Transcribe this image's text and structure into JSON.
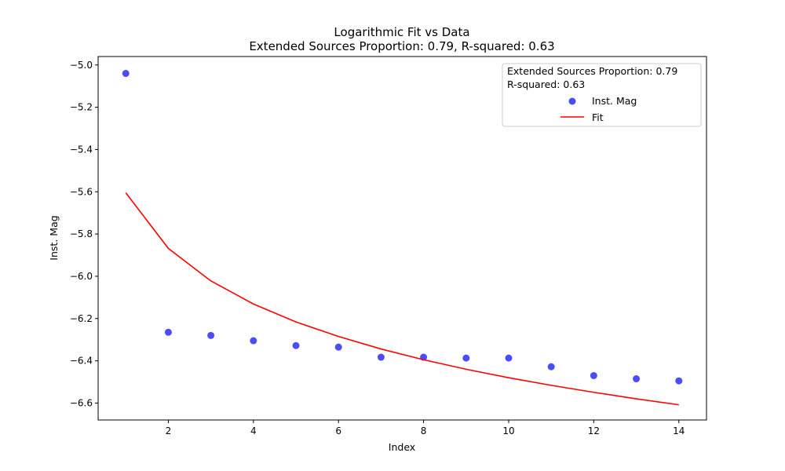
{
  "chart_data": {
    "type": "scatter",
    "title": "Logarithmic Fit vs Data",
    "subtitle": "Extended Sources Proportion: 0.79, R-squared: 0.63",
    "xlabel": "Index",
    "ylabel": "Inst. Mag",
    "xlim": [
      0.35,
      14.65
    ],
    "ylim": [
      -6.68,
      -4.96
    ],
    "xticks": [
      2,
      4,
      6,
      8,
      10,
      12,
      14
    ],
    "xtick_labels": [
      "2",
      "4",
      "6",
      "8",
      "10",
      "12",
      "14"
    ],
    "yticks": [
      -5.0,
      -5.2,
      -5.4,
      -5.6,
      -5.8,
      -6.0,
      -6.2,
      -6.4,
      -6.6
    ],
    "ytick_labels": [
      "−5.0",
      "−5.2",
      "−5.4",
      "−5.6",
      "−5.8",
      "−6.0",
      "−6.2",
      "−6.4",
      "−6.6"
    ],
    "grid": false,
    "legend_position": "top-right",
    "legend_header": [
      "Extended Sources Proportion: 0.79",
      "R-squared: 0.63"
    ],
    "series": [
      {
        "name": "Inst. Mag",
        "kind": "scatter",
        "color": "#0000ff",
        "x": [
          1,
          2,
          3,
          4,
          5,
          6,
          7,
          8,
          9,
          10,
          11,
          12,
          13,
          14
        ],
        "y": [
          -5.04,
          -6.265,
          -6.28,
          -6.305,
          -6.328,
          -6.335,
          -6.383,
          -6.383,
          -6.387,
          -6.387,
          -6.428,
          -6.47,
          -6.485,
          -6.495
        ]
      },
      {
        "name": "Fit",
        "kind": "line",
        "color": "#ff0000",
        "x": [
          1,
          2,
          3,
          4,
          5,
          6,
          7,
          8,
          9,
          10,
          11,
          12,
          13,
          14
        ],
        "y": [
          -5.605,
          -5.868,
          -6.022,
          -6.131,
          -6.216,
          -6.285,
          -6.344,
          -6.395,
          -6.44,
          -6.48,
          -6.516,
          -6.549,
          -6.58,
          -6.608
        ]
      }
    ]
  }
}
